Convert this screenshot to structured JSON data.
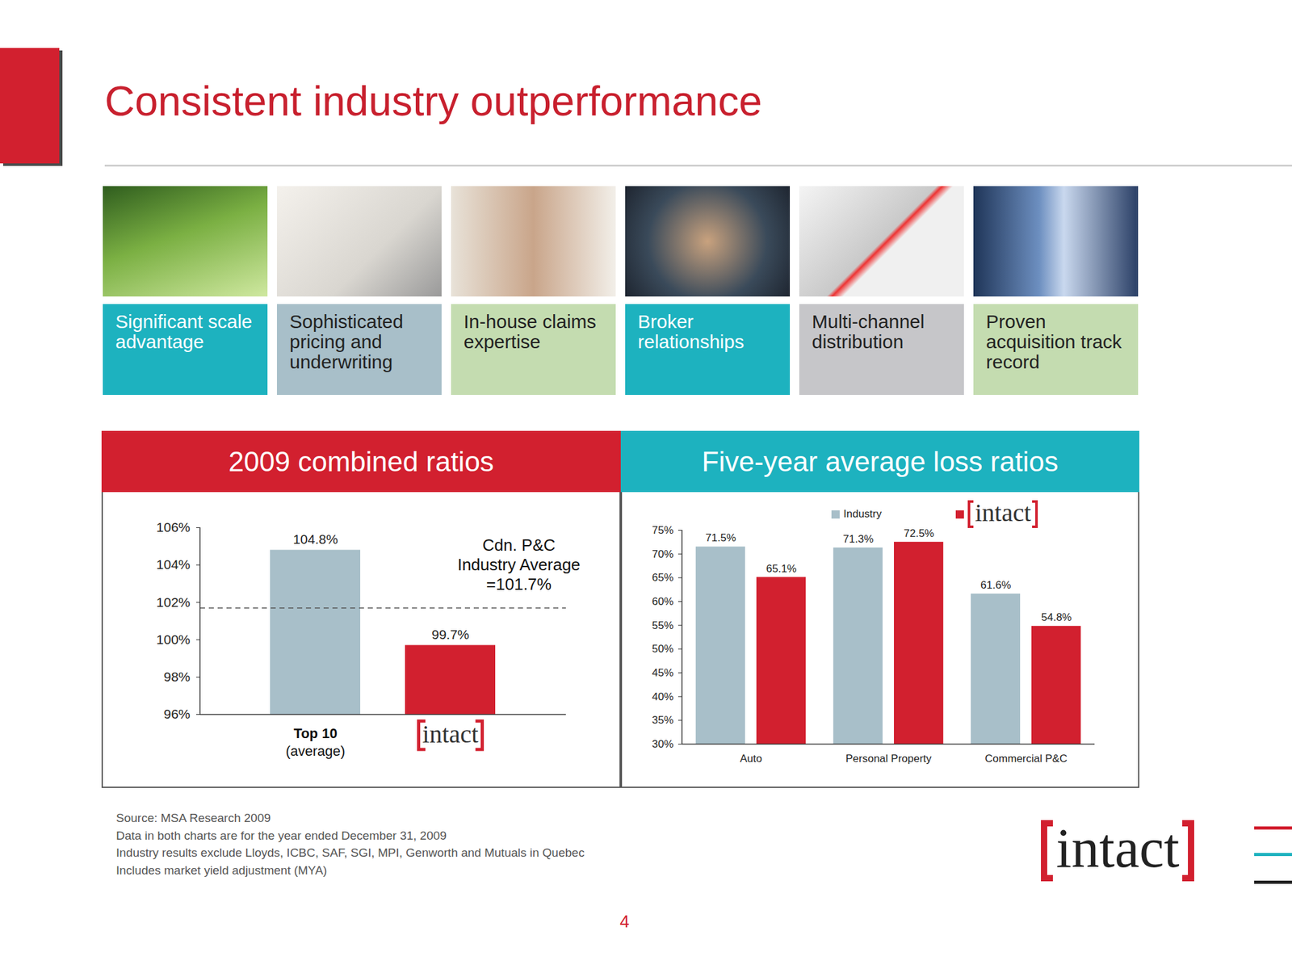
{
  "title": "Consistent industry outperformance",
  "tiles": [
    "Significant scale advantage",
    "Sophisticated pricing and underwriting",
    "In-house claims expertise",
    "Broker relationships",
    "Multi-channel distribution",
    "Proven acquisition track record"
  ],
  "chart_data": [
    {
      "type": "bar",
      "title": "2009 combined ratios",
      "categories": [
        "Top 10 (average)",
        "intact"
      ],
      "values": [
        104.8,
        99.7
      ],
      "value_labels": [
        "104.8%",
        "99.7%"
      ],
      "colors": [
        "#a8bfc9",
        "#d2202f"
      ],
      "data_labels": true,
      "grid": false,
      "ylim": [
        96,
        106
      ],
      "yticks": [
        {
          "value": 96,
          "label": "96%"
        },
        {
          "value": 98,
          "label": "98%"
        },
        {
          "value": 100,
          "label": "100%"
        },
        {
          "value": 102,
          "label": "102%"
        },
        {
          "value": 104,
          "label": "104%"
        },
        {
          "value": 106,
          "label": "106%"
        }
      ],
      "annotations": [
        {
          "y": 101.7,
          "text": [
            "Cdn. P&C",
            "Industry Average",
            "=101.7%"
          ]
        }
      ]
    },
    {
      "type": "bar",
      "title": "Five-year average loss ratios",
      "categories": [
        "Auto",
        "Personal Property",
        "Commercial P&C"
      ],
      "series": [
        {
          "name": "Industry",
          "color": "#a8bfc9",
          "values": [
            71.5,
            71.3,
            61.6
          ],
          "value_labels": [
            "71.5%",
            "71.3%",
            "61.6%"
          ]
        },
        {
          "name": "intact",
          "color": "#d2202f",
          "values": [
            65.1,
            72.5,
            54.8
          ],
          "value_labels": [
            "65.1%",
            "72.5%",
            "54.8%"
          ]
        }
      ],
      "data_labels": true,
      "legend": "top",
      "grid": false,
      "ylim": [
        30,
        75
      ],
      "yticks": [
        {
          "value": 30,
          "label": "30%"
        },
        {
          "value": 35,
          "label": "35%"
        },
        {
          "value": 40,
          "label": "40%"
        },
        {
          "value": 45,
          "label": "45%"
        },
        {
          "value": 50,
          "label": "50%"
        },
        {
          "value": 55,
          "label": "55%"
        },
        {
          "value": 60,
          "label": "60%"
        },
        {
          "value": 65,
          "label": "65%"
        },
        {
          "value": 70,
          "label": "70%"
        },
        {
          "value": 75,
          "label": "75%"
        }
      ]
    }
  ],
  "notes": [
    "Source: MSA Research 2009",
    "Data in both charts are for the year ended December 31, 2009",
    "Industry results exclude Lloyds, ICBC, SAF, SGI, MPI, Genworth and Mutuals in Quebec",
    "Includes market yield adjustment (MYA)"
  ],
  "page": "4",
  "logo": "intact"
}
